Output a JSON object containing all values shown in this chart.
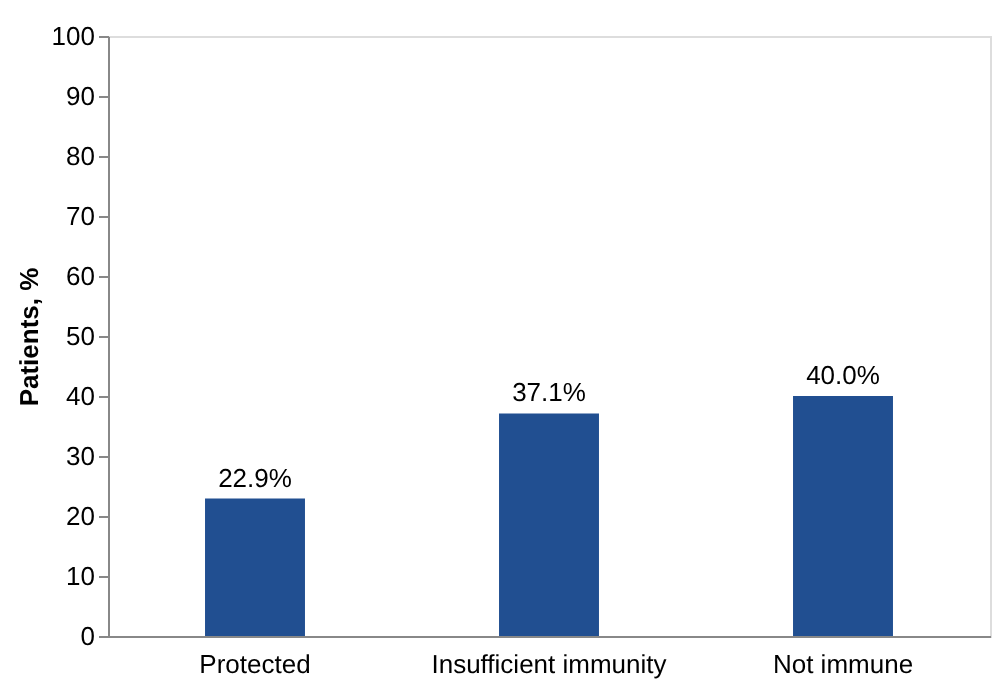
{
  "chart_data": {
    "type": "bar",
    "ylabel": "Patients, %",
    "categories": [
      "Protected",
      "Insufficient immunity",
      "Not immune"
    ],
    "values": [
      22.9,
      37.1,
      40.0
    ],
    "color": "#214f91",
    "value_labels": [
      "22.9%",
      "37.1%",
      "40.0%"
    ],
    "ylim": [
      0,
      100
    ],
    "yticks": [
      0,
      10,
      20,
      30,
      40,
      50,
      60,
      70,
      80,
      90,
      100
    ],
    "grid": false
  }
}
